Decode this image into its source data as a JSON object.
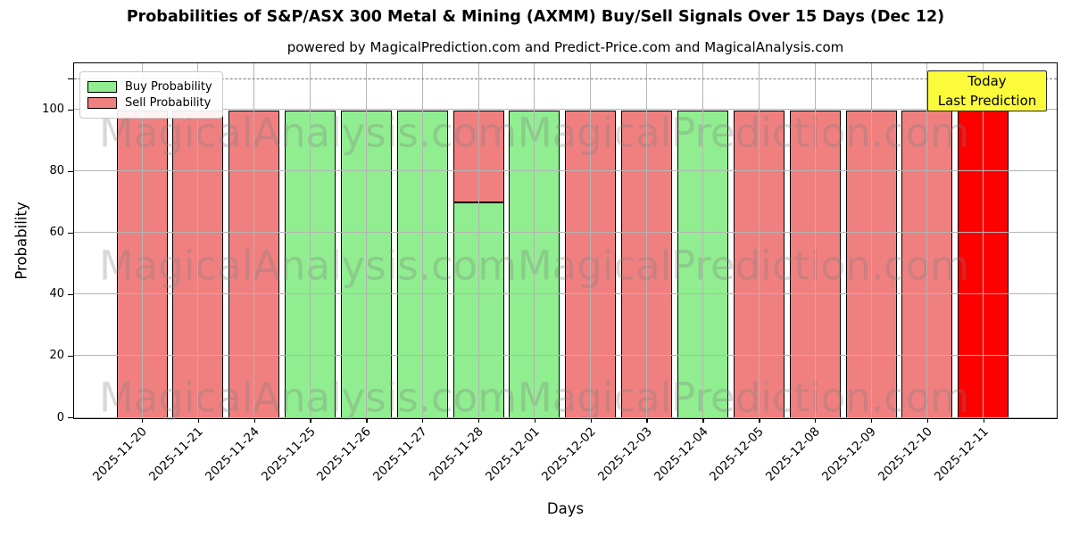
{
  "title": "Probabilities of S&P/ASX 300 Metal & Mining (AXMM) Buy/Sell Signals Over 15 Days (Dec 12)",
  "subtitle": "powered by MagicalPrediction.com and Predict-Price.com and MagicalAnalysis.com",
  "watermark": {
    "left": "MagicalAnalysis.com",
    "right": "MagicalPrediction.com"
  },
  "legend": {
    "items": [
      {
        "label": "Buy Probability",
        "color": "#90ee90"
      },
      {
        "label": "Sell Probability",
        "color": "#f08080"
      }
    ]
  },
  "today_box": {
    "line1": "Today",
    "line2": "Last Prediction",
    "bg_color": "#fbfb3c"
  },
  "chart_data": {
    "type": "bar",
    "stacked": true,
    "title": "Probabilities of S&P/ASX 300 Metal & Mining (AXMM) Buy/Sell Signals Over 15 Days (Dec 12)",
    "xlabel": "Days",
    "ylabel": "Probability",
    "ylim": [
      0,
      115
    ],
    "yticks": [
      0,
      20,
      40,
      60,
      80,
      100
    ],
    "grid": true,
    "legend_position": "upper left",
    "dashed_reference_line_y": 110,
    "categories": [
      "2025-11-20",
      "2025-11-21",
      "2025-11-24",
      "2025-11-25",
      "2025-11-26",
      "2025-11-27",
      "2025-11-28",
      "2025-12-01",
      "2025-12-02",
      "2025-12-03",
      "2025-12-04",
      "2025-12-05",
      "2025-12-08",
      "2025-12-09",
      "2025-12-10",
      "2025-12-11"
    ],
    "series": [
      {
        "name": "Buy Probability",
        "color": "#90ee90",
        "values": [
          0,
          0,
          0,
          100,
          100,
          100,
          70,
          100,
          0,
          0,
          100,
          0,
          0,
          0,
          0,
          0
        ]
      },
      {
        "name": "Sell Probability",
        "color": "#f08080",
        "values": [
          100,
          100,
          100,
          0,
          0,
          0,
          30,
          0,
          100,
          100,
          0,
          100,
          100,
          100,
          100,
          100
        ]
      }
    ],
    "highlight_bar": {
      "index": 15,
      "color": "#ff0000"
    }
  }
}
